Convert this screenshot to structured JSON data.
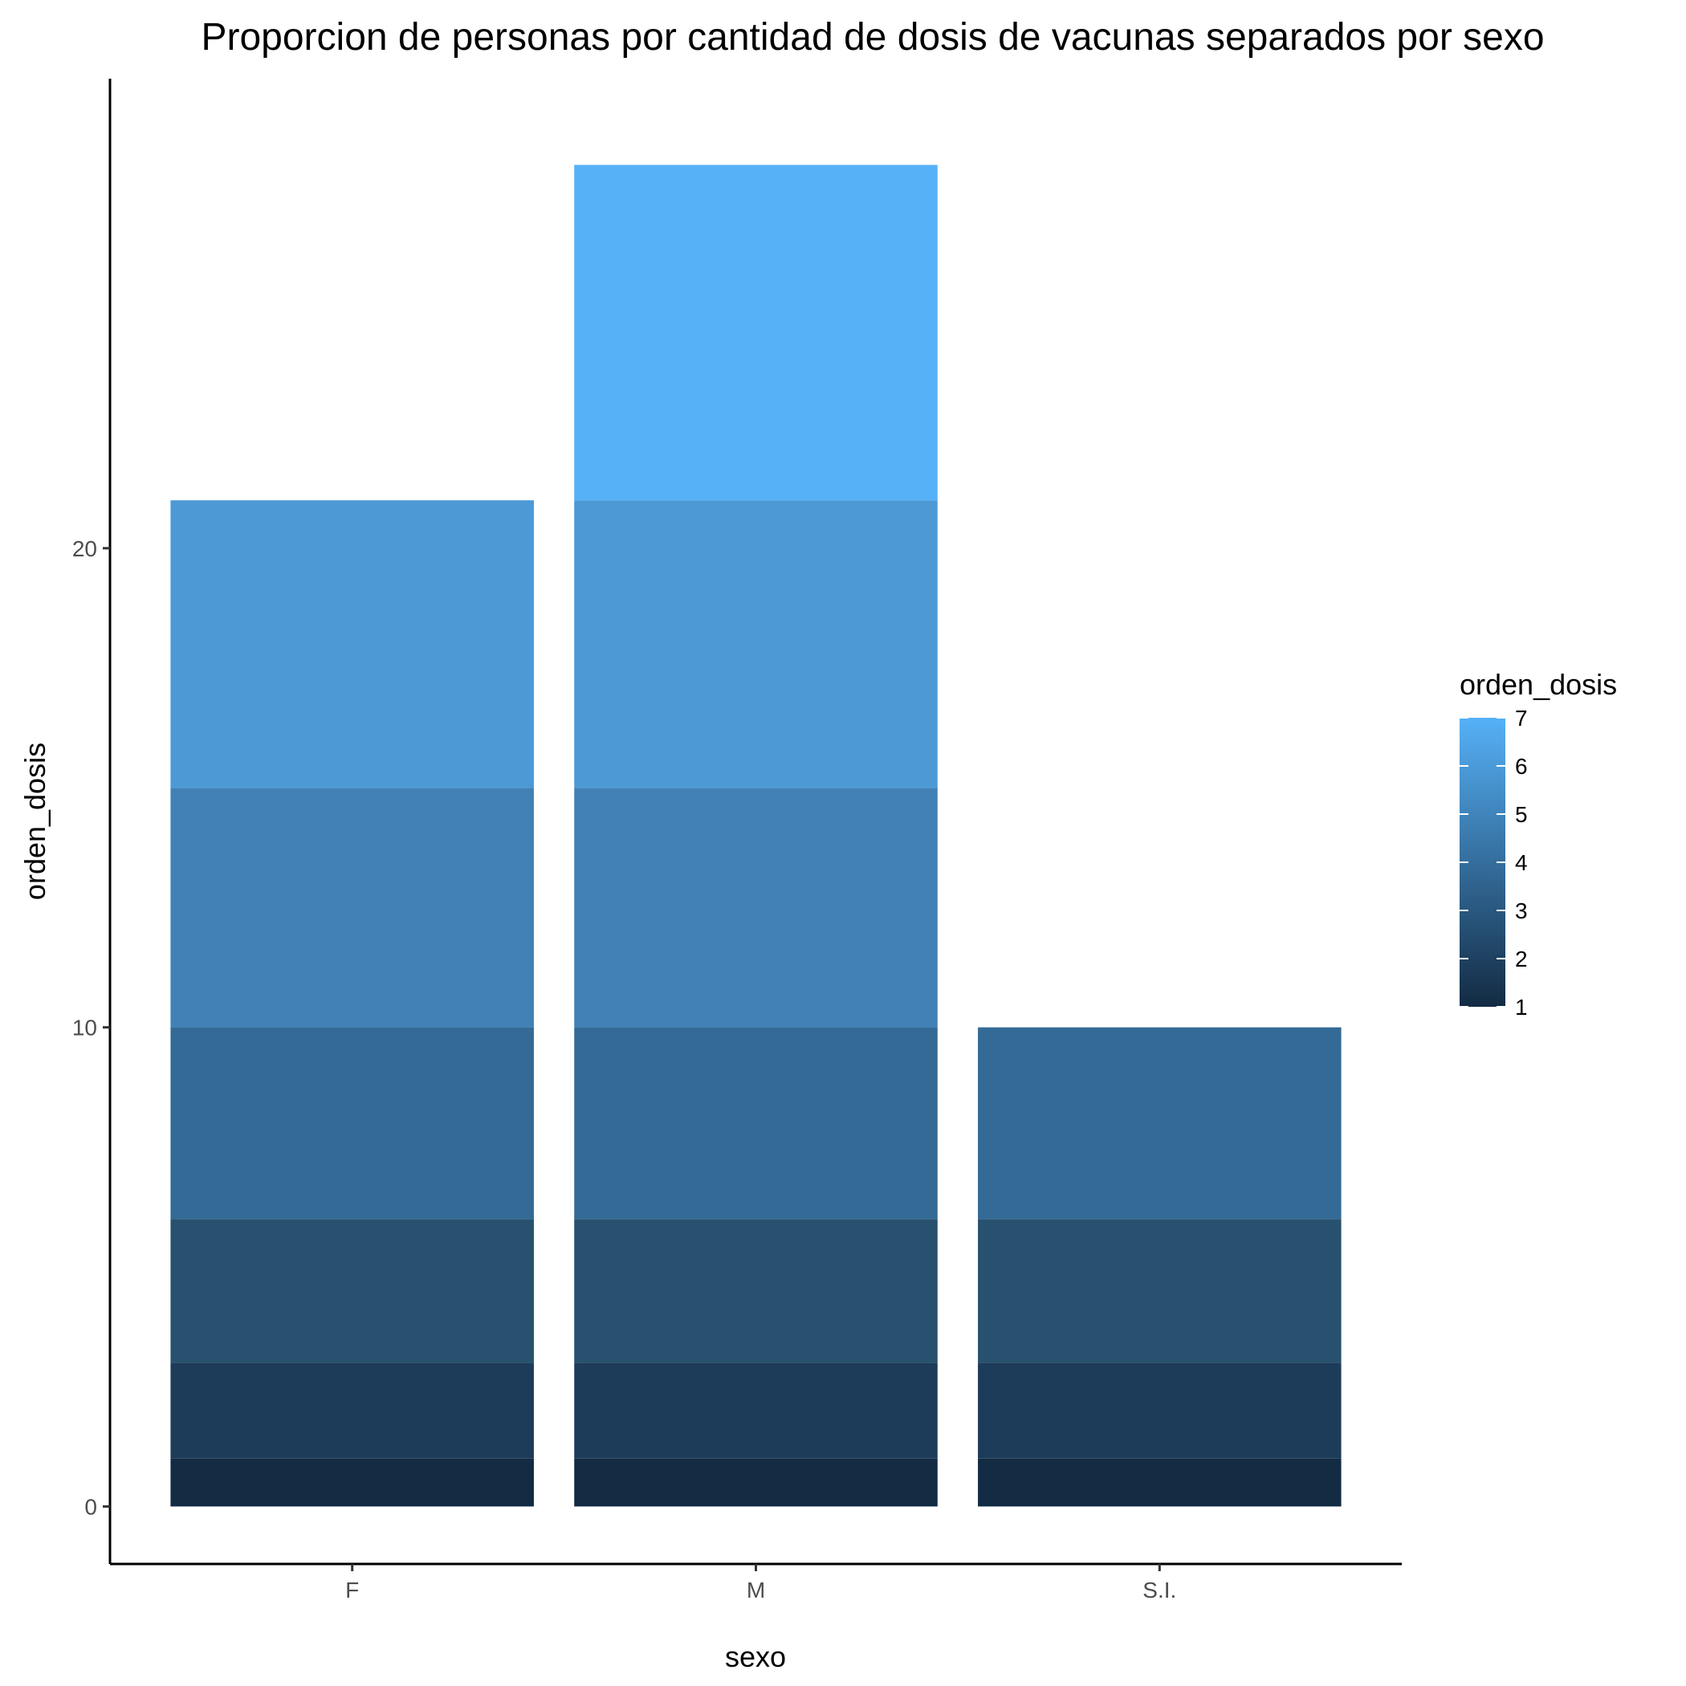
{
  "chart_data": {
    "type": "bar",
    "stacked": true,
    "title": "Proporcion de personas por cantidad de dosis de vacunas separados por sexo",
    "xlabel": "sexo",
    "ylabel": "orden_dosis",
    "categories": [
      "F",
      "M",
      "S.I."
    ],
    "ylim": [
      -1.2,
      29.8
    ],
    "yticks": [
      0,
      10,
      20
    ],
    "series": [
      {
        "name": "1",
        "color": "#132b43",
        "values": [
          1,
          1,
          1
        ]
      },
      {
        "name": "2",
        "color": "#1d3c59",
        "values": [
          2,
          2,
          2
        ]
      },
      {
        "name": "3",
        "color": "#27516f",
        "values": [
          3,
          3,
          3
        ]
      },
      {
        "name": "4",
        "color": "#336a96",
        "values": [
          4,
          4,
          4
        ]
      },
      {
        "name": "5",
        "color": "#4181b5",
        "values": [
          5,
          5,
          0
        ]
      },
      {
        "name": "6",
        "color": "#4c99d6",
        "values": [
          6,
          6,
          0
        ]
      },
      {
        "name": "7",
        "color": "#56b1f7",
        "values": [
          0,
          7,
          0
        ]
      }
    ],
    "legend": {
      "title": "orden_dosis",
      "position": "right",
      "type": "colorbar",
      "labels": [
        "7",
        "6",
        "5",
        "4",
        "3",
        "2",
        "1"
      ],
      "color_low": "#132b43",
      "color_high": "#56b1f7"
    },
    "grid": false
  }
}
